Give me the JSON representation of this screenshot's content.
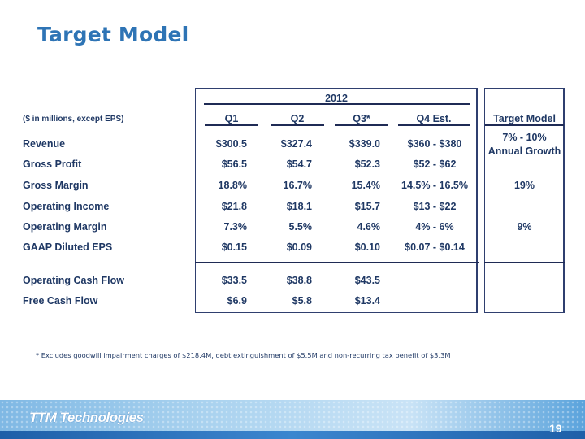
{
  "title": "Target Model",
  "table": {
    "year": "2012",
    "units_note": "($ in millions, except EPS)",
    "columns": [
      "Q1",
      "Q2",
      "Q3*",
      "Q4 Est.",
      "Target Model"
    ],
    "rows": [
      {
        "label": "Revenue",
        "q1": "$300.5",
        "q2": "$327.4",
        "q3": "$339.0",
        "q4": "$360 - $380",
        "target": "7% - 10%",
        "target_line2": "Annual Growth"
      },
      {
        "label": "Gross Profit",
        "q1": "$56.5",
        "q2": "$54.7",
        "q3": "$52.3",
        "q4": "$52 - $62",
        "target": ""
      },
      {
        "label": "Gross Margin",
        "q1": "18.8%",
        "q2": "16.7%",
        "q3": "15.4%",
        "q4": "14.5% - 16.5%",
        "target": "19%"
      },
      {
        "label": "Operating Income",
        "q1": "$21.8",
        "q2": "$18.1",
        "q3": "$15.7",
        "q4": "$13 - $22",
        "target": ""
      },
      {
        "label": "Operating Margin",
        "q1": "7.3%",
        "q2": "5.5%",
        "q3": "4.6%",
        "q4": "4% - 6%",
        "target": "9%"
      },
      {
        "label": "GAAP Diluted EPS",
        "q1": "$0.15",
        "q2": "$0.09",
        "q3": "$0.10",
        "q4": "$0.07 - $0.14",
        "target": ""
      },
      {
        "label": "Operating Cash Flow",
        "q1": "$33.5",
        "q2": "$38.8",
        "q3": "$43.5",
        "q4": "",
        "target": ""
      },
      {
        "label": "Free Cash Flow",
        "q1": "$6.9",
        "q2": "$5.8",
        "q3": "$13.4",
        "q4": "",
        "target": ""
      }
    ]
  },
  "footnote": "* Excludes goodwill impairment charges of $218.4M, debt extinguishment of $5.5M and non-recurring tax benefit of $3.3M",
  "footer": {
    "logo_text": "TTM Technologies",
    "page_number": "19"
  },
  "colors": {
    "title": "#2e74b5",
    "text": "#1f3864",
    "footer_accent": "#1e5fa8"
  }
}
